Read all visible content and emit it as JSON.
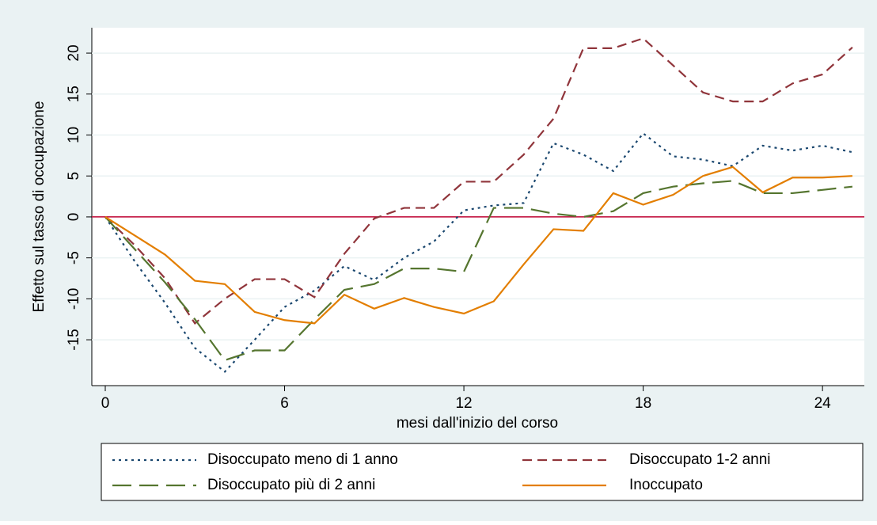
{
  "chart_data": {
    "type": "line",
    "y_label": "Effetto sul tasso di occupazione",
    "x_label": "mesi dall'inizio del corso",
    "x": [
      0,
      1,
      2,
      3,
      4,
      5,
      6,
      7,
      8,
      9,
      10,
      11,
      12,
      13,
      14,
      15,
      16,
      17,
      18,
      19,
      20,
      21,
      22,
      23,
      24,
      25
    ],
    "series": [
      {
        "name": "Disoccupato meno di 1 anno",
        "color": "#1a476f",
        "style": "dot",
        "values": [
          0,
          -5.5,
          -10.5,
          -16,
          -18.9,
          -15,
          -11,
          -9,
          -6,
          -7.7,
          -5,
          -3,
          0.8,
          1.4,
          1.7,
          9,
          7.6,
          5.6,
          10.2,
          7.4,
          7,
          6.2,
          8.7,
          8.1,
          8.7,
          7.9
        ]
      },
      {
        "name": "Disoccupato 1-2 anni",
        "color": "#90353b",
        "style": "dash",
        "values": [
          0,
          -3.5,
          -7.5,
          -13,
          -10,
          -7.6,
          -7.6,
          -9.8,
          -4.5,
          -0.2,
          1.1,
          1.1,
          4.3,
          4.3,
          7.6,
          12,
          20.6,
          20.6,
          21.8,
          18.5,
          15.2,
          14.1,
          14.1,
          16.3,
          17.4,
          20.7
        ]
      },
      {
        "name": "Disoccupato più di 2 anni",
        "color": "#55752f",
        "style": "longdash",
        "values": [
          0,
          -4,
          -8,
          -12.5,
          -17.5,
          -16.3,
          -16.3,
          -12.5,
          -8.9,
          -8.2,
          -6.3,
          -6.3,
          -6.7,
          1.1,
          1.1,
          0.4,
          0,
          0.7,
          2.9,
          3.7,
          4.1,
          4.4,
          2.9,
          2.9,
          3.3,
          3.7
        ]
      },
      {
        "name": "Inoccupato",
        "color": "#e37e00",
        "style": "solid",
        "values": [
          0,
          -2.3,
          -4.6,
          -7.8,
          -8.2,
          -11.6,
          -12.6,
          -13,
          -9.5,
          -11.2,
          -9.9,
          -11,
          -11.8,
          -10.3,
          -5.8,
          -1.5,
          -1.7,
          2.9,
          1.5,
          2.7,
          5,
          6.1,
          3,
          4.8,
          4.8,
          5
        ]
      }
    ],
    "xlim": [
      -0.45,
      25.4
    ],
    "xticks": [
      0,
      6,
      12,
      18,
      24
    ],
    "ylim": [
      -20.6,
      23.1
    ],
    "yticks": [
      -15,
      -10,
      -5,
      0,
      5,
      10,
      15,
      20
    ],
    "grid": true,
    "reference_line": {
      "value": 0,
      "color": "#c10534"
    },
    "legend_position": "bottom"
  }
}
